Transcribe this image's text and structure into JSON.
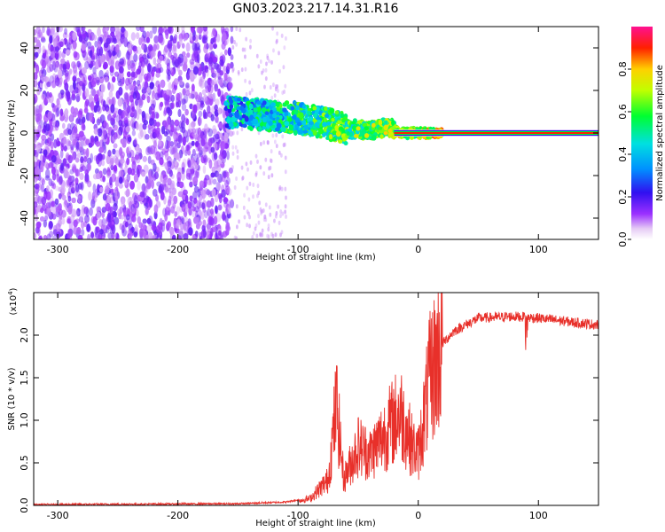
{
  "title": "GN03.2023.217.14.31.R16",
  "chart_data": [
    {
      "type": "heatmap",
      "xlabel": "Height of straight line (km)",
      "ylabel": "Frequency (Hz)",
      "xlim": [
        -320,
        150
      ],
      "ylim": [
        -50,
        50
      ],
      "xticks": [
        "-300",
        "-200",
        "-100",
        "0",
        "100"
      ],
      "yticks": [
        "-40",
        "-20",
        "0",
        "20",
        "40"
      ],
      "colorbar": {
        "label": "Normalized spectral amplitude",
        "range": [
          0.0,
          1.0
        ],
        "ticks": [
          "0.0",
          "0.2",
          "0.4",
          "0.6",
          "0.8"
        ],
        "colormap": "rainbow-white-to-magenta"
      },
      "signal_track": [
        {
          "x": -160,
          "y": 10
        },
        {
          "x": -140,
          "y": 9
        },
        {
          "x": -120,
          "y": 8
        },
        {
          "x": -100,
          "y": 7
        },
        {
          "x": -80,
          "y": 5
        },
        {
          "x": -60,
          "y": 2
        },
        {
          "x": -40,
          "y": 1
        },
        {
          "x": -25,
          "y": 3
        },
        {
          "x": -15,
          "y": 0
        },
        {
          "x": 0,
          "y": 0
        },
        {
          "x": 50,
          "y": 0
        },
        {
          "x": 100,
          "y": 0
        },
        {
          "x": 150,
          "y": 0
        }
      ]
    },
    {
      "type": "line",
      "xlabel": "Height of straight line (km)",
      "ylabel": "SNR (10 * v/v)",
      "multiplier": "(x10",
      "multiplier_exp": "4",
      "multiplier_close": ")",
      "xlim": [
        -320,
        150
      ],
      "ylim": [
        0,
        2.5
      ],
      "xticks": [
        "-300",
        "-200",
        "-100",
        "0",
        "100"
      ],
      "yticks": [
        "0.0",
        "0.5",
        "1.0",
        "1.5",
        "2.0"
      ],
      "line_color": "#e8302a",
      "series_envelope": [
        {
          "x": -320,
          "y": 0.0
        },
        {
          "x": -150,
          "y": 0.01
        },
        {
          "x": -110,
          "y": 0.03
        },
        {
          "x": -90,
          "y": 0.08
        },
        {
          "x": -75,
          "y": 0.3
        },
        {
          "x": -68,
          "y": 1.2
        },
        {
          "x": -62,
          "y": 0.3
        },
        {
          "x": -50,
          "y": 0.7
        },
        {
          "x": -40,
          "y": 0.6
        },
        {
          "x": -25,
          "y": 0.9
        },
        {
          "x": -15,
          "y": 1.1
        },
        {
          "x": -5,
          "y": 0.7
        },
        {
          "x": 0,
          "y": 0.6
        },
        {
          "x": 10,
          "y": 1.5
        },
        {
          "x": 20,
          "y": 1.9
        },
        {
          "x": 30,
          "y": 2.05
        },
        {
          "x": 50,
          "y": 2.2
        },
        {
          "x": 80,
          "y": 2.22
        },
        {
          "x": 100,
          "y": 2.2
        },
        {
          "x": 130,
          "y": 2.15
        },
        {
          "x": 150,
          "y": 2.12
        }
      ]
    }
  ]
}
